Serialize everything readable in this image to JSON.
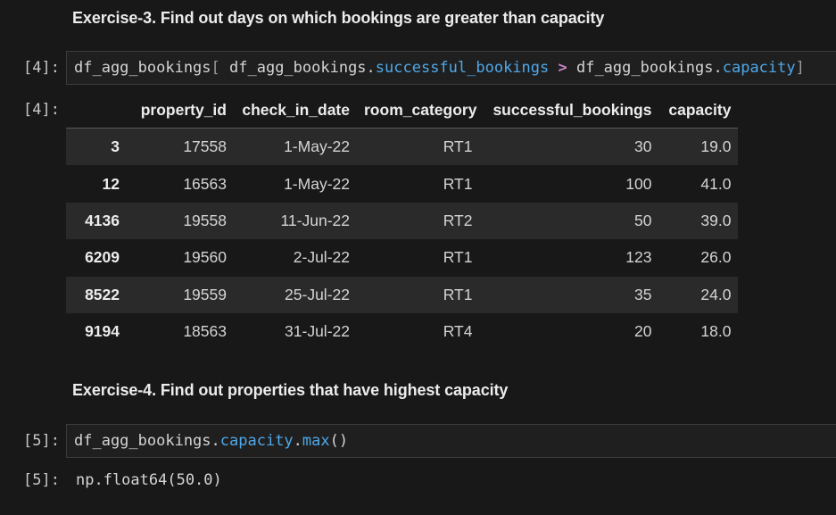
{
  "exercise3": {
    "heading": "Exercise-3. Find out days on which bookings are greater than capacity",
    "in_prompt": "[4]:",
    "out_prompt": "[4]:",
    "code": {
      "obj": "df_agg_bookings",
      "open": "[",
      "obj2": " df_agg_bookings.",
      "attr1": "successful_bookings",
      "op": " > ",
      "obj3": "df_agg_bookings.",
      "attr2": "capacity",
      "close": "]"
    },
    "table": {
      "columns": [
        "",
        "property_id",
        "check_in_date",
        "room_category",
        "successful_bookings",
        "capacity"
      ],
      "rows": [
        {
          "index": "3",
          "property_id": "17558",
          "check_in_date": "1-May-22",
          "room_category": "RT1",
          "successful_bookings": "30",
          "capacity": "19.0"
        },
        {
          "index": "12",
          "property_id": "16563",
          "check_in_date": "1-May-22",
          "room_category": "RT1",
          "successful_bookings": "100",
          "capacity": "41.0"
        },
        {
          "index": "4136",
          "property_id": "19558",
          "check_in_date": "11-Jun-22",
          "room_category": "RT2",
          "successful_bookings": "50",
          "capacity": "39.0"
        },
        {
          "index": "6209",
          "property_id": "19560",
          "check_in_date": "2-Jul-22",
          "room_category": "RT1",
          "successful_bookings": "123",
          "capacity": "26.0"
        },
        {
          "index": "8522",
          "property_id": "19559",
          "check_in_date": "25-Jul-22",
          "room_category": "RT1",
          "successful_bookings": "35",
          "capacity": "24.0"
        },
        {
          "index": "9194",
          "property_id": "18563",
          "check_in_date": "31-Jul-22",
          "room_category": "RT4",
          "successful_bookings": "20",
          "capacity": "18.0"
        }
      ]
    }
  },
  "exercise4": {
    "heading": "Exercise-4. Find out properties that have highest capacity",
    "in_prompt": "[5]:",
    "out_prompt": "[5]:",
    "code": {
      "obj": "df_agg_bookings.",
      "attr1": "capacity",
      "dot": ".",
      "attr2": "max",
      "parens": "()"
    },
    "output": "np.float64(50.0)"
  },
  "colors": {
    "background": "#181818",
    "attribute": "#4fa8e8",
    "operator": "#c586c0",
    "row_stripe": "#2a2a2a"
  }
}
